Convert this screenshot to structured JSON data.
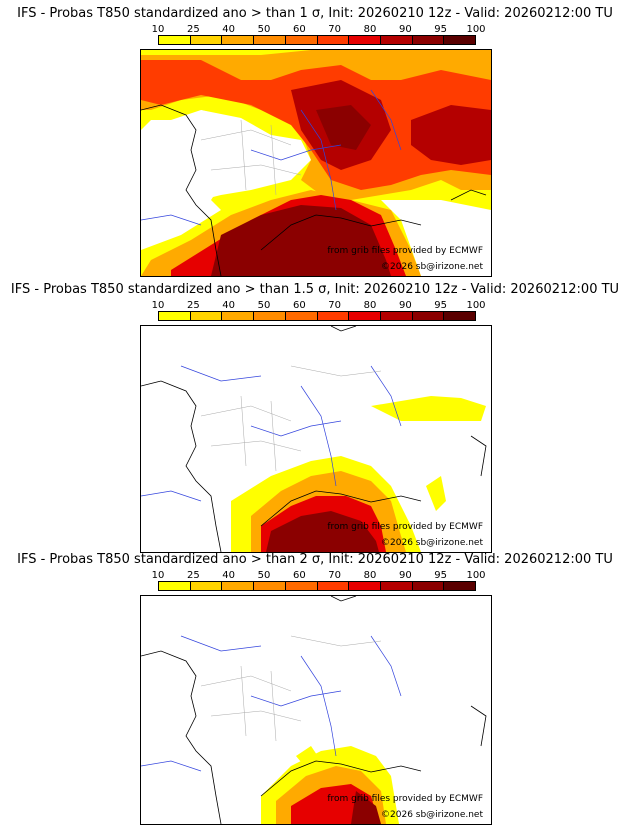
{
  "colorbar": {
    "labels": [
      "10",
      "25",
      "40",
      "50",
      "60",
      "70",
      "80",
      "90",
      "95",
      "100"
    ],
    "colors": [
      "#ffff00",
      "#ffd400",
      "#ffaa00",
      "#ff8c00",
      "#ff6a00",
      "#ff3c00",
      "#e60000",
      "#b40000",
      "#8b0000",
      "#5a0000"
    ]
  },
  "credits": {
    "source": "from grib files provided by ECMWF",
    "copyright": "©2026 sb@irizone.net"
  },
  "colors": {
    "coastline": "#000000",
    "rivers": "#3344dd",
    "regions": "#aaaaaa"
  },
  "panels": [
    {
      "title": "IFS - Probas T850  standardized ano > than 1 σ, Init: 20260210 12z - Valid: 20260212:00 TU"
    },
    {
      "title": "IFS - Probas T850  standardized ano > than 1.5 σ, Init: 20260210 12z - Valid: 20260212:00 TU"
    },
    {
      "title": "IFS - Probas T850  standardized ano > than 2 σ, Init: 20260210 12z - Valid: 20260212:00 TU"
    }
  ]
}
